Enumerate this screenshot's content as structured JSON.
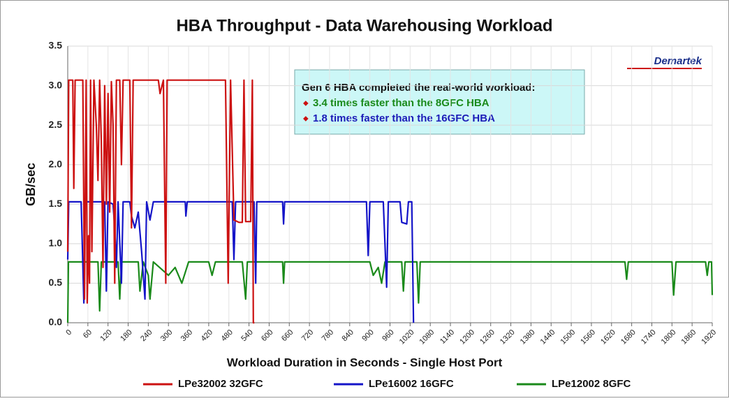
{
  "chart_data": {
    "type": "line",
    "title": "HBA Throughput - Data Warehousing Workload",
    "x_label": "Workload Duration in Seconds - Single Host Port",
    "y_label": "GB/sec",
    "logo": "Demartek",
    "annotation": {
      "heading": "Gen 6 HBA completed the real-world workload:",
      "items": [
        {
          "text": "3.4 times faster than the 8GFC HBA",
          "color": "#1a8a1a"
        },
        {
          "text": "1.8 times faster than the 16GFC HBA",
          "color": "#1c1cb8"
        }
      ]
    },
    "xlim": [
      0,
      1920
    ],
    "xticks": [
      0,
      60,
      120,
      180,
      240,
      300,
      360,
      420,
      480,
      540,
      600,
      660,
      720,
      780,
      840,
      900,
      960,
      1020,
      1080,
      1140,
      1200,
      1260,
      1320,
      1380,
      1440,
      1500,
      1560,
      1620,
      1680,
      1740,
      1800,
      1860,
      1920
    ],
    "ylim": [
      0,
      3.5
    ],
    "yticks": [
      {
        "value": 0,
        "label": "0.0"
      },
      0.5,
      {
        "value": 1,
        "label": "1.0"
      },
      1.5,
      {
        "value": 2,
        "label": "2.0"
      },
      2.5,
      {
        "value": 3,
        "label": "3.0"
      },
      3.5
    ],
    "grid": true,
    "legend": "bottom",
    "series": [
      {
        "name": "LPe32002 32GFC",
        "color": "#cc1111",
        "x": [
          0,
          3,
          15,
          18,
          22,
          45,
          50,
          55,
          58,
          62,
          65,
          68,
          72,
          78,
          85,
          90,
          95,
          100,
          105,
          110,
          115,
          120,
          125,
          130,
          135,
          140,
          145,
          155,
          160,
          165,
          185,
          190,
          195,
          270,
          275,
          285,
          292,
          296,
          470,
          478,
          485,
          495,
          510,
          520,
          525,
          530,
          545,
          550,
          553,
          556
        ],
        "values": [
          0.9,
          3.07,
          3.07,
          1.7,
          3.07,
          3.07,
          0.3,
          3.07,
          0.25,
          1.1,
          0.5,
          3.07,
          0.9,
          3.07,
          2.5,
          1.8,
          3.07,
          2.3,
          0.7,
          3.0,
          1.5,
          2.9,
          1.4,
          3.05,
          2.5,
          0.5,
          3.07,
          3.07,
          2.0,
          3.07,
          3.07,
          1.2,
          3.07,
          3.07,
          2.9,
          3.07,
          0.5,
          3.07,
          3.07,
          0.5,
          3.07,
          1.3,
          1.27,
          1.27,
          3.07,
          1.28,
          1.28,
          3.07,
          0,
          0
        ]
      },
      {
        "name": "LPe16002 16GFC",
        "color": "#1414c8",
        "x": [
          0,
          3,
          40,
          48,
          52,
          110,
          115,
          120,
          135,
          140,
          145,
          150,
          160,
          165,
          185,
          190,
          200,
          210,
          220,
          230,
          235,
          245,
          255,
          350,
          352,
          356,
          490,
          495,
          500,
          555,
          560,
          563,
          640,
          643,
          646,
          890,
          895,
          900,
          940,
          945,
          950,
          955,
          990,
          995,
          1010,
          1015,
          1025,
          1030
        ],
        "values": [
          0.8,
          1.53,
          1.53,
          0.25,
          1.53,
          1.53,
          0.4,
          1.53,
          1.5,
          1.2,
          0.7,
          1.53,
          0.5,
          1.53,
          1.53,
          1.35,
          1.2,
          1.4,
          0.9,
          0.3,
          1.53,
          1.3,
          1.53,
          1.53,
          1.35,
          1.53,
          1.53,
          0.8,
          1.53,
          1.53,
          0.5,
          1.53,
          1.53,
          1.25,
          1.53,
          1.53,
          0.85,
          1.53,
          1.53,
          1.0,
          0.45,
          1.53,
          1.53,
          1.27,
          1.25,
          1.53,
          1.53,
          0
        ]
      },
      {
        "name": "LPe12002 8GFC",
        "color": "#1a8a1a",
        "x": [
          0,
          2,
          90,
          95,
          100,
          150,
          155,
          160,
          210,
          215,
          225,
          240,
          245,
          255,
          300,
          320,
          340,
          360,
          420,
          430,
          440,
          520,
          530,
          535,
          640,
          643,
          646,
          900,
          910,
          925,
          935,
          945,
          995,
          1000,
          1005,
          1040,
          1045,
          1050,
          1660,
          1665,
          1670,
          1800,
          1805,
          1812,
          1900,
          1905,
          1910,
          1918,
          1920
        ],
        "values": [
          0,
          0.77,
          0.77,
          0.15,
          0.77,
          0.77,
          0.3,
          0.77,
          0.77,
          0.4,
          0.77,
          0.6,
          0.3,
          0.77,
          0.6,
          0.7,
          0.5,
          0.77,
          0.77,
          0.6,
          0.77,
          0.77,
          0.3,
          0.77,
          0.77,
          0.5,
          0.77,
          0.77,
          0.6,
          0.7,
          0.5,
          0.77,
          0.77,
          0.4,
          0.77,
          0.77,
          0.25,
          0.77,
          0.77,
          0.55,
          0.77,
          0.77,
          0.35,
          0.77,
          0.77,
          0.6,
          0.77,
          0.77,
          0.35
        ]
      }
    ]
  }
}
